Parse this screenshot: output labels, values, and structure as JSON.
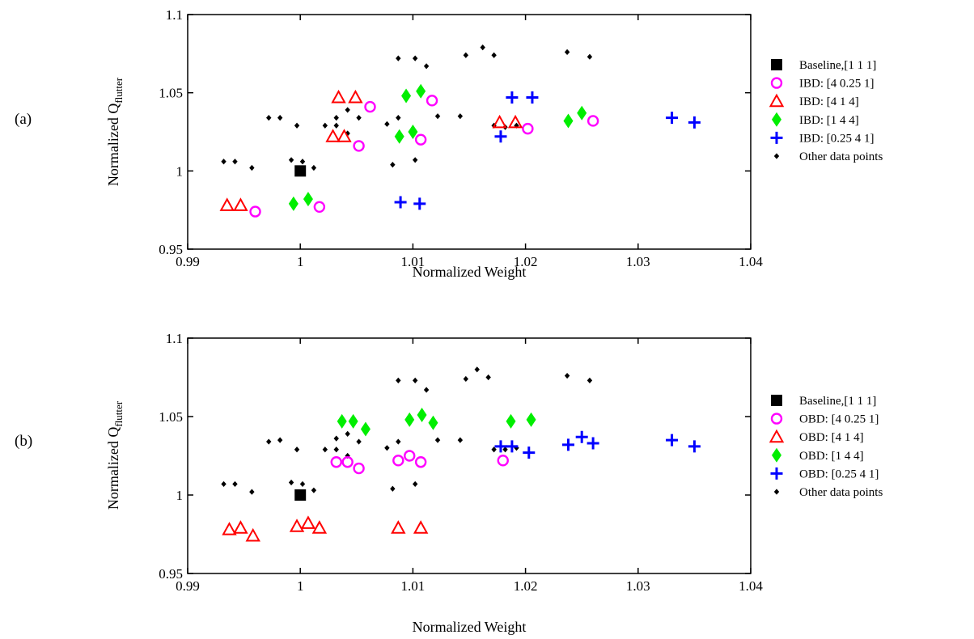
{
  "chart_data": [
    {
      "type": "scatter",
      "panel_label": "(a)",
      "xlabel": "Normalized Weight",
      "ylabel_main": "Normalized Q",
      "ylabel_sub": "flutter",
      "xlim": [
        0.99,
        1.04
      ],
      "ylim": [
        0.95,
        1.1
      ],
      "xticks": [
        "0.99",
        "1",
        "1.01",
        "1.02",
        "1.03",
        "1.04"
      ],
      "yticks": [
        "0.95",
        "1",
        "1.05",
        "1.1"
      ],
      "grid": false,
      "legend_position": "right",
      "series": [
        {
          "name": "Other data points",
          "marker": "diamond-small",
          "color": "#000000",
          "points": [
            [
              0.9932,
              1.006
            ],
            [
              0.9942,
              1.006
            ],
            [
              0.9957,
              1.002
            ],
            [
              0.9972,
              1.034
            ],
            [
              0.9982,
              1.034
            ],
            [
              0.9997,
              1.029
            ],
            [
              0.9992,
              1.007
            ],
            [
              1.0002,
              1.006
            ],
            [
              1.0012,
              1.002
            ],
            [
              1.0022,
              1.029
            ],
            [
              1.0032,
              1.034
            ],
            [
              1.0032,
              1.029
            ],
            [
              1.0042,
              1.039
            ],
            [
              1.0042,
              1.024
            ],
            [
              1.0052,
              1.034
            ],
            [
              1.0077,
              1.03
            ],
            [
              1.0087,
              1.034
            ],
            [
              1.0082,
              1.004
            ],
            [
              1.0087,
              1.072
            ],
            [
              1.0102,
              1.072
            ],
            [
              1.0112,
              1.067
            ],
            [
              1.0102,
              1.007
            ],
            [
              1.0122,
              1.035
            ],
            [
              1.0142,
              1.035
            ],
            [
              1.0147,
              1.074
            ],
            [
              1.0162,
              1.079
            ],
            [
              1.0172,
              1.074
            ],
            [
              1.0172,
              1.029
            ],
            [
              1.0182,
              1.028
            ],
            [
              1.0192,
              1.029
            ],
            [
              1.0237,
              1.076
            ],
            [
              1.0257,
              1.073
            ]
          ]
        },
        {
          "name": "Baseline,[1 1 1]",
          "marker": "square",
          "color": "#000000",
          "points": [
            [
              1.0,
              1.0
            ]
          ]
        },
        {
          "name": "IBD: [4 0.25 1]",
          "marker": "circle",
          "color": "#ff00ff",
          "points": [
            [
              0.996,
              0.974
            ],
            [
              1.0017,
              0.977
            ],
            [
              1.0052,
              1.016
            ],
            [
              1.0107,
              1.02
            ],
            [
              1.0062,
              1.041
            ],
            [
              1.0117,
              1.045
            ],
            [
              1.0202,
              1.027
            ],
            [
              1.026,
              1.032
            ]
          ]
        },
        {
          "name": "IBD: [4 1 4]",
          "marker": "triangle",
          "color": "#ff0000",
          "points": [
            [
              0.9935,
              0.978
            ],
            [
              0.9947,
              0.978
            ],
            [
              1.0029,
              1.022
            ],
            [
              1.0039,
              1.022
            ],
            [
              1.0034,
              1.047
            ],
            [
              1.0049,
              1.047
            ],
            [
              1.0177,
              1.031
            ],
            [
              1.0191,
              1.031
            ]
          ]
        },
        {
          "name": "IBD: [1 4 4]",
          "marker": "diamond",
          "color": "#00ee00",
          "points": [
            [
              0.9994,
              0.979
            ],
            [
              1.0007,
              0.982
            ],
            [
              1.0088,
              1.022
            ],
            [
              1.01,
              1.025
            ],
            [
              1.0094,
              1.048
            ],
            [
              1.0107,
              1.051
            ],
            [
              1.0238,
              1.032
            ],
            [
              1.025,
              1.037
            ]
          ]
        },
        {
          "name": "IBD: [0.25 4 1]",
          "marker": "plus",
          "color": "#0000ff",
          "points": [
            [
              1.0089,
              0.98
            ],
            [
              1.0106,
              0.979
            ],
            [
              1.0178,
              1.022
            ],
            [
              1.0188,
              1.047
            ],
            [
              1.0206,
              1.047
            ],
            [
              1.033,
              1.034
            ],
            [
              1.035,
              1.031
            ]
          ]
        }
      ]
    },
    {
      "type": "scatter",
      "panel_label": "(b)",
      "xlabel": "Normalized Weight",
      "ylabel_main": "Normalized Q",
      "ylabel_sub": "flutter",
      "xlim": [
        0.99,
        1.04
      ],
      "ylim": [
        0.95,
        1.1
      ],
      "xticks": [
        "0.99",
        "1",
        "1.01",
        "1.02",
        "1.03",
        "1.04"
      ],
      "yticks": [
        "0.95",
        "1",
        "1.05",
        "1.1"
      ],
      "grid": false,
      "legend_position": "right",
      "series": [
        {
          "name": "Other data points",
          "marker": "diamond-small",
          "color": "#000000",
          "points": [
            [
              0.9932,
              1.007
            ],
            [
              0.9942,
              1.007
            ],
            [
              0.9957,
              1.002
            ],
            [
              0.9972,
              1.034
            ],
            [
              0.9982,
              1.035
            ],
            [
              0.9997,
              1.029
            ],
            [
              0.9992,
              1.008
            ],
            [
              1.0002,
              1.007
            ],
            [
              1.0012,
              1.003
            ],
            [
              1.0022,
              1.029
            ],
            [
              1.0032,
              1.036
            ],
            [
              1.0032,
              1.029
            ],
            [
              1.0042,
              1.039
            ],
            [
              1.0042,
              1.025
            ],
            [
              1.0052,
              1.034
            ],
            [
              1.0077,
              1.03
            ],
            [
              1.0087,
              1.034
            ],
            [
              1.0082,
              1.004
            ],
            [
              1.0087,
              1.073
            ],
            [
              1.0102,
              1.073
            ],
            [
              1.0112,
              1.067
            ],
            [
              1.0102,
              1.007
            ],
            [
              1.0122,
              1.035
            ],
            [
              1.0142,
              1.035
            ],
            [
              1.0147,
              1.074
            ],
            [
              1.0157,
              1.08
            ],
            [
              1.0167,
              1.075
            ],
            [
              1.0172,
              1.029
            ],
            [
              1.0182,
              1.029
            ],
            [
              1.0192,
              1.03
            ],
            [
              1.0237,
              1.076
            ],
            [
              1.0257,
              1.073
            ]
          ]
        },
        {
          "name": "Baseline,[1 1 1]",
          "marker": "square",
          "color": "#000000",
          "points": [
            [
              1.0,
              1.0
            ]
          ]
        },
        {
          "name": "OBD: [4 0.25 1]",
          "marker": "circle",
          "color": "#ff00ff",
          "points": [
            [
              1.0032,
              1.021
            ],
            [
              1.0042,
              1.021
            ],
            [
              1.0052,
              1.017
            ],
            [
              1.0087,
              1.022
            ],
            [
              1.0097,
              1.025
            ],
            [
              1.0107,
              1.021
            ],
            [
              1.018,
              1.022
            ]
          ]
        },
        {
          "name": "OBD: [4 1 4]",
          "marker": "triangle",
          "color": "#ff0000",
          "points": [
            [
              0.9937,
              0.978
            ],
            [
              0.9947,
              0.979
            ],
            [
              0.9958,
              0.974
            ],
            [
              0.9997,
              0.98
            ],
            [
              1.0007,
              0.982
            ],
            [
              1.0017,
              0.979
            ],
            [
              1.0087,
              0.979
            ],
            [
              1.0107,
              0.979
            ]
          ]
        },
        {
          "name": "OBD: [1 4 4]",
          "marker": "diamond",
          "color": "#00ee00",
          "points": [
            [
              1.0037,
              1.047
            ],
            [
              1.0047,
              1.047
            ],
            [
              1.0058,
              1.042
            ],
            [
              1.0097,
              1.048
            ],
            [
              1.0108,
              1.051
            ],
            [
              1.0118,
              1.046
            ],
            [
              1.0187,
              1.047
            ],
            [
              1.0205,
              1.048
            ]
          ]
        },
        {
          "name": "OBD: [0.25 4 1]",
          "marker": "plus",
          "color": "#0000ff",
          "points": [
            [
              1.0178,
              1.031
            ],
            [
              1.0188,
              1.031
            ],
            [
              1.0203,
              1.027
            ],
            [
              1.0238,
              1.032
            ],
            [
              1.025,
              1.037
            ],
            [
              1.026,
              1.033
            ],
            [
              1.033,
              1.035
            ],
            [
              1.035,
              1.031
            ]
          ]
        }
      ]
    }
  ]
}
